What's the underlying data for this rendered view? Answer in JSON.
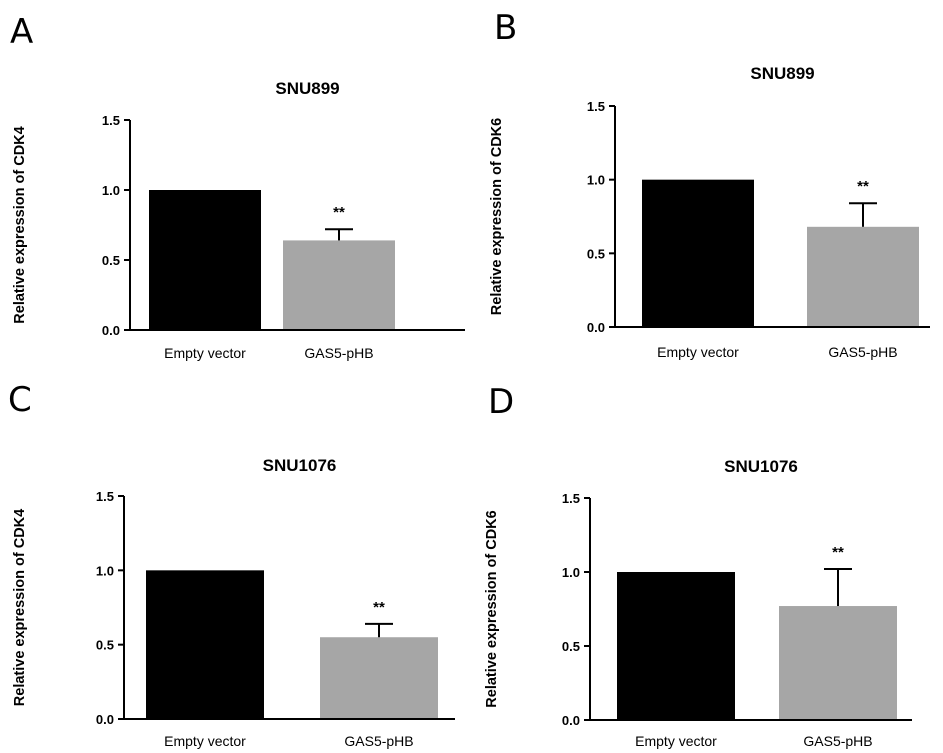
{
  "chart_data": [
    {
      "panel_label": "A",
      "type": "bar",
      "title": "SNU899",
      "ylabel": "Relative expression of CDK4",
      "xlabel": "",
      "categories": [
        "Empty vector",
        "GAS5-pHB"
      ],
      "values": [
        1.0,
        0.64
      ],
      "error_upper": [
        null,
        0.72
      ],
      "bar_colors": [
        "#000000",
        "#a6a6a6"
      ],
      "annotations": [
        "",
        "**"
      ],
      "ylim": [
        0,
        1.5
      ],
      "yticks": [
        0.0,
        0.5,
        1.0,
        1.5
      ],
      "ytick_labels": [
        "0.0",
        "0.5",
        "1.0",
        "1.5"
      ],
      "grid": false,
      "legend": "none"
    },
    {
      "panel_label": "B",
      "type": "bar",
      "title": "SNU899",
      "ylabel": "Relative expression of CDK6",
      "xlabel": "",
      "categories": [
        "Empty vector",
        "GAS5-pHB"
      ],
      "values": [
        1.0,
        0.68
      ],
      "error_upper": [
        null,
        0.84
      ],
      "bar_colors": [
        "#000000",
        "#a6a6a6"
      ],
      "annotations": [
        "",
        "**"
      ],
      "ylim": [
        0,
        1.5
      ],
      "yticks": [
        0.0,
        0.5,
        1.0,
        1.5
      ],
      "ytick_labels": [
        "0.0",
        "0.5",
        "1.0",
        "1.5"
      ],
      "grid": false,
      "legend": "none"
    },
    {
      "panel_label": "C",
      "type": "bar",
      "title": "SNU1076",
      "ylabel": "Relative expression of CDK4",
      "xlabel": "",
      "categories": [
        "Empty vector",
        "GAS5-pHB"
      ],
      "values": [
        1.0,
        0.55
      ],
      "error_upper": [
        null,
        0.64
      ],
      "bar_colors": [
        "#000000",
        "#a6a6a6"
      ],
      "annotations": [
        "",
        "**"
      ],
      "ylim": [
        0,
        1.5
      ],
      "yticks": [
        0.0,
        0.5,
        1.0,
        1.5
      ],
      "ytick_labels": [
        "0.0",
        "0.5",
        "1.0",
        "1.5"
      ],
      "grid": false,
      "legend": "none"
    },
    {
      "panel_label": "D",
      "type": "bar",
      "title": "SNU1076",
      "ylabel": "Relative expression of CDK6",
      "xlabel": "",
      "categories": [
        "Empty vector",
        "GAS5-pHB"
      ],
      "values": [
        1.0,
        0.77
      ],
      "error_upper": [
        null,
        1.02
      ],
      "bar_colors": [
        "#000000",
        "#a6a6a6"
      ],
      "annotations": [
        "",
        "**"
      ],
      "ylim": [
        0,
        1.5
      ],
      "yticks": [
        0.0,
        0.5,
        1.0,
        1.5
      ],
      "ytick_labels": [
        "0.0",
        "0.5",
        "1.0",
        "1.5"
      ],
      "grid": false,
      "legend": "none"
    }
  ]
}
